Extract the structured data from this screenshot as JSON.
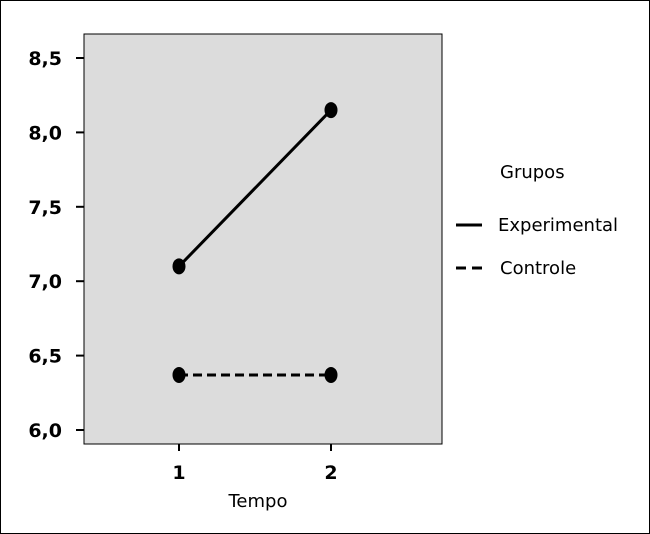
{
  "chart_data": {
    "type": "line",
    "title": "",
    "xlabel": "Tempo",
    "ylabel": "",
    "x": [
      "1",
      "2"
    ],
    "y_ticks": [
      "6,0",
      "6,5",
      "7,0",
      "7,5",
      "8,0",
      "8,5"
    ],
    "y_tick_values": [
      6.0,
      6.5,
      7.0,
      7.5,
      8.0,
      8.5
    ],
    "ylim": [
      5.95,
      8.6
    ],
    "grid": false,
    "legend": {
      "title": "Grupos",
      "position": "right"
    },
    "colors": {
      "plot_bg": "#dcdcdc",
      "series": "#000000"
    },
    "series": [
      {
        "name": "Experimental",
        "style": "solid",
        "values": [
          7.1,
          8.15
        ]
      },
      {
        "name": "Controle",
        "style": "dashed",
        "values": [
          6.37,
          6.37
        ]
      }
    ]
  }
}
